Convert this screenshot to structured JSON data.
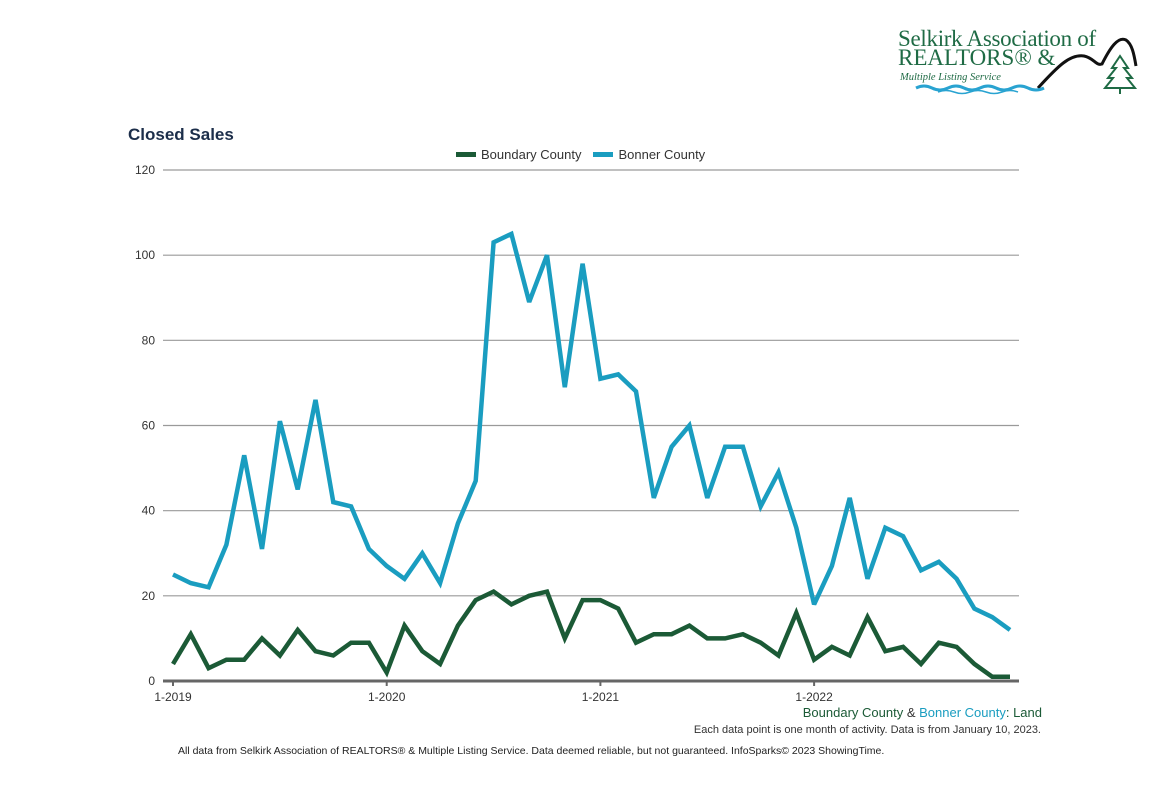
{
  "logo": {
    "line1": "Selkirk Association of",
    "line2": "REALTORS® &",
    "line3": "Multiple Listing Service",
    "colors": {
      "text": "#1f6b45",
      "water": "#29a3d1",
      "mountain": "#111111",
      "tree": "#1f6b45"
    }
  },
  "footer": {
    "subtitle_part1": "Boundary County",
    "subtitle_amp": " & ",
    "subtitle_part2": "Bonner County",
    "subtitle_part3": ": Land",
    "note": "Each data point is one month of activity. Data is from January 10, 2023.",
    "disclaimer": "All data from Selkirk Association of REALTORS® & Multiple Listing Service. Data deemed reliable, but not guaranteed. InfoSparks© 2023 ShowingTime."
  },
  "chart_data": {
    "type": "line",
    "title": "Closed Sales",
    "xlabel": "",
    "ylabel": "",
    "ylim": [
      0,
      120
    ],
    "yticks": [
      0,
      20,
      40,
      60,
      80,
      100,
      120
    ],
    "grid": true,
    "legend_position": "top-center",
    "x_tick_labels": [
      {
        "label": "1-2019",
        "index": 0
      },
      {
        "label": "1-2020",
        "index": 12
      },
      {
        "label": "1-2021",
        "index": 24
      },
      {
        "label": "1-2022",
        "index": 36
      }
    ],
    "x": [
      "1-2019",
      "2-2019",
      "3-2019",
      "4-2019",
      "5-2019",
      "6-2019",
      "7-2019",
      "8-2019",
      "9-2019",
      "10-2019",
      "11-2019",
      "12-2019",
      "1-2020",
      "2-2020",
      "3-2020",
      "4-2020",
      "5-2020",
      "6-2020",
      "7-2020",
      "8-2020",
      "9-2020",
      "10-2020",
      "11-2020",
      "12-2020",
      "1-2021",
      "2-2021",
      "3-2021",
      "4-2021",
      "5-2021",
      "6-2021",
      "7-2021",
      "8-2021",
      "9-2021",
      "10-2021",
      "11-2021",
      "12-2021",
      "1-2022",
      "2-2022",
      "3-2022",
      "4-2022",
      "5-2022",
      "6-2022",
      "7-2022",
      "8-2022",
      "9-2022",
      "10-2022",
      "11-2022",
      "12-2022"
    ],
    "series": [
      {
        "name": "Boundary County",
        "color": "#1b5a36",
        "values": [
          4,
          11,
          3,
          5,
          5,
          10,
          6,
          12,
          7,
          6,
          9,
          9,
          2,
          13,
          7,
          4,
          13,
          19,
          21,
          18,
          20,
          21,
          10,
          19,
          19,
          17,
          9,
          11,
          11,
          13,
          10,
          10,
          11,
          9,
          6,
          16,
          5,
          8,
          6,
          15,
          7,
          8,
          4,
          9,
          8,
          4,
          1,
          1
        ]
      },
      {
        "name": "Bonner County",
        "color": "#1a9dc0",
        "values": [
          25,
          23,
          22,
          32,
          53,
          31,
          61,
          45,
          66,
          42,
          41,
          31,
          27,
          24,
          30,
          23,
          37,
          47,
          103,
          105,
          89,
          100,
          69,
          98,
          71,
          72,
          68,
          43,
          55,
          60,
          43,
          55,
          55,
          41,
          49,
          36,
          18,
          27,
          43,
          24,
          36,
          34,
          26,
          28,
          24,
          17,
          15,
          12
        ]
      }
    ]
  }
}
